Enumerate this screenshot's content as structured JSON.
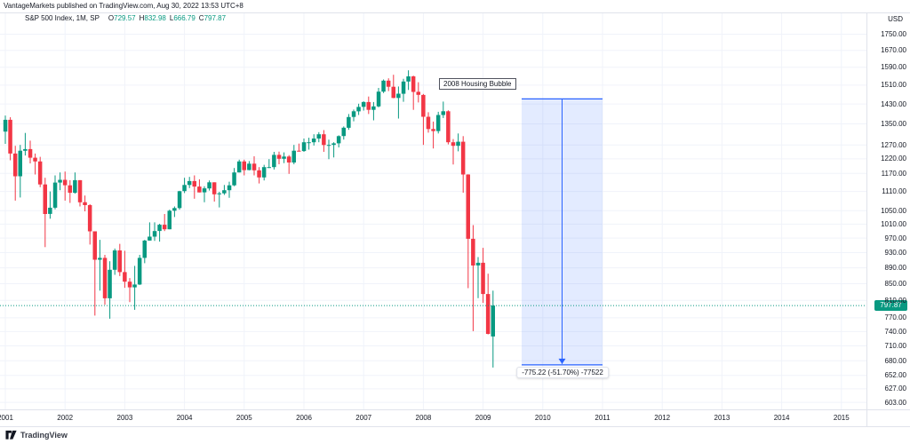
{
  "header": {
    "publisher_line": "VantageMarkets published on TradingView.com, Aug 30, 2022 13:53 UTC+8"
  },
  "legend": {
    "symbol": "S&P 500 Index, 1M, SP",
    "ohlc": [
      {
        "label": "O",
        "value": "729.57"
      },
      {
        "label": "H",
        "value": "832.98"
      },
      {
        "label": "L",
        "value": "666.79"
      },
      {
        "label": "C",
        "value": "797.87"
      }
    ]
  },
  "annotation": {
    "text": "2008 Housing Bubble"
  },
  "measure_tool": {
    "label": "-775.22 (-51.70%) -77522"
  },
  "price_axis": {
    "currency": "USD",
    "last_price": "797.87",
    "ticks": [
      "1750.00",
      "1670.00",
      "1590.00",
      "1510.00",
      "1430.00",
      "1350.00",
      "1270.00",
      "1220.00",
      "1170.00",
      "1110.00",
      "1050.00",
      "1010.00",
      "970.00",
      "930.00",
      "890.00",
      "850.00",
      "810.00",
      "770.00",
      "740.00",
      "710.00",
      "680.00",
      "652.00",
      "627.00",
      "603.00"
    ]
  },
  "time_axis": {
    "years": [
      "2001",
      "2002",
      "2003",
      "2004",
      "2005",
      "2006",
      "2007",
      "2008",
      "2009",
      "2010",
      "2011",
      "2012",
      "2013",
      "2014",
      "2015"
    ]
  },
  "watermark": {
    "text": "TradingView"
  },
  "colors": {
    "up": "#089981",
    "down": "#f23645",
    "grid": "#f0f3fa",
    "frame": "#e0e3eb",
    "measure_line": "#2962ff",
    "measure_fill": "rgba(41,98,255,0.13)",
    "text": "#131722"
  },
  "chart_data": {
    "type": "candlestick",
    "title": "S&P 500 Index",
    "timeframe": "1M",
    "exchange": "SP",
    "price_scale": "log",
    "ylabel": "USD",
    "x_range": [
      "2001",
      "2015"
    ],
    "last_bar": {
      "o": 729.57,
      "h": 832.98,
      "l": 666.79,
      "c": 797.87
    },
    "candles": [
      [
        "2001-01",
        1320,
        1383,
        1274,
        1366
      ],
      [
        "2001-02",
        1366,
        1376,
        1215,
        1239
      ],
      [
        "2001-03",
        1239,
        1267,
        1081,
        1160
      ],
      [
        "2001-04",
        1160,
        1270,
        1091,
        1249
      ],
      [
        "2001-05",
        1249,
        1315,
        1232,
        1255
      ],
      [
        "2001-06",
        1255,
        1286,
        1204,
        1224
      ],
      [
        "2001-07",
        1224,
        1239,
        1166,
        1211
      ],
      [
        "2001-08",
        1211,
        1227,
        1124,
        1133
      ],
      [
        "2001-09",
        1133,
        1155,
        945,
        1040
      ],
      [
        "2001-10",
        1040,
        1110,
        1026,
        1059
      ],
      [
        "2001-11",
        1059,
        1163,
        1054,
        1139
      ],
      [
        "2001-12",
        1139,
        1173,
        1114,
        1148
      ],
      [
        "2002-01",
        1148,
        1176,
        1081,
        1130
      ],
      [
        "2002-02",
        1130,
        1147,
        1074,
        1106
      ],
      [
        "2002-03",
        1106,
        1173,
        1103,
        1147
      ],
      [
        "2002-04",
        1147,
        1147,
        1063,
        1076
      ],
      [
        "2002-05",
        1076,
        1097,
        1048,
        1067
      ],
      [
        "2002-06",
        1067,
        1070,
        952,
        989
      ],
      [
        "2002-07",
        989,
        989,
        775,
        911
      ],
      [
        "2002-08",
        911,
        965,
        833,
        916
      ],
      [
        "2002-09",
        916,
        924,
        800,
        815
      ],
      [
        "2002-10",
        815,
        907,
        768,
        885
      ],
      [
        "2002-11",
        885,
        941,
        872,
        936
      ],
      [
        "2002-12",
        936,
        954,
        869,
        879
      ],
      [
        "2003-01",
        879,
        935,
        840,
        855
      ],
      [
        "2003-02",
        855,
        864,
        806,
        841
      ],
      [
        "2003-03",
        841,
        895,
        788,
        848
      ],
      [
        "2003-04",
        848,
        924,
        847,
        916
      ],
      [
        "2003-05",
        916,
        965,
        902,
        963
      ],
      [
        "2003-06",
        963,
        1015,
        963,
        974
      ],
      [
        "2003-07",
        974,
        1015,
        962,
        990
      ],
      [
        "2003-08",
        990,
        1011,
        960,
        1008
      ],
      [
        "2003-09",
        1008,
        1040,
        990,
        995
      ],
      [
        "2003-10",
        995,
        1053,
        995,
        1050
      ],
      [
        "2003-11",
        1050,
        1063,
        1031,
        1058
      ],
      [
        "2003-12",
        1058,
        1112,
        1053,
        1111
      ],
      [
        "2004-01",
        1111,
        1155,
        1105,
        1131
      ],
      [
        "2004-02",
        1131,
        1158,
        1121,
        1144
      ],
      [
        "2004-03",
        1144,
        1163,
        1087,
        1126
      ],
      [
        "2004-04",
        1126,
        1150,
        1107,
        1107
      ],
      [
        "2004-05",
        1107,
        1127,
        1076,
        1120
      ],
      [
        "2004-06",
        1120,
        1146,
        1113,
        1140
      ],
      [
        "2004-07",
        1140,
        1140,
        1078,
        1101
      ],
      [
        "2004-08",
        1101,
        1109,
        1060,
        1104
      ],
      [
        "2004-09",
        1104,
        1131,
        1099,
        1114
      ],
      [
        "2004-10",
        1114,
        1142,
        1090,
        1130
      ],
      [
        "2004-11",
        1130,
        1188,
        1127,
        1173
      ],
      [
        "2004-12",
        1173,
        1217,
        1173,
        1211
      ],
      [
        "2005-01",
        1211,
        1217,
        1163,
        1181
      ],
      [
        "2005-02",
        1181,
        1212,
        1180,
        1203
      ],
      [
        "2005-03",
        1203,
        1229,
        1163,
        1180
      ],
      [
        "2005-04",
        1180,
        1191,
        1136,
        1156
      ],
      [
        "2005-05",
        1156,
        1199,
        1146,
        1191
      ],
      [
        "2005-06",
        1191,
        1219,
        1188,
        1191
      ],
      [
        "2005-07",
        1191,
        1245,
        1183,
        1234
      ],
      [
        "2005-08",
        1234,
        1246,
        1201,
        1220
      ],
      [
        "2005-09",
        1220,
        1243,
        1205,
        1228
      ],
      [
        "2005-10",
        1228,
        1233,
        1168,
        1207
      ],
      [
        "2005-11",
        1207,
        1270,
        1201,
        1249
      ],
      [
        "2005-12",
        1249,
        1275,
        1246,
        1248
      ],
      [
        "2006-01",
        1248,
        1294,
        1245,
        1280
      ],
      [
        "2006-02",
        1280,
        1297,
        1253,
        1280
      ],
      [
        "2006-03",
        1280,
        1310,
        1268,
        1294
      ],
      [
        "2006-04",
        1294,
        1318,
        1280,
        1310
      ],
      [
        "2006-05",
        1310,
        1326,
        1245,
        1270
      ],
      [
        "2006-06",
        1270,
        1290,
        1219,
        1270
      ],
      [
        "2006-07",
        1270,
        1280,
        1225,
        1276
      ],
      [
        "2006-08",
        1276,
        1306,
        1261,
        1303
      ],
      [
        "2006-09",
        1303,
        1340,
        1290,
        1335
      ],
      [
        "2006-10",
        1335,
        1389,
        1327,
        1377
      ],
      [
        "2006-11",
        1377,
        1407,
        1360,
        1400
      ],
      [
        "2006-12",
        1400,
        1431,
        1385,
        1418
      ],
      [
        "2007-01",
        1418,
        1441,
        1403,
        1438
      ],
      [
        "2007-02",
        1438,
        1461,
        1389,
        1406
      ],
      [
        "2007-03",
        1406,
        1438,
        1364,
        1420
      ],
      [
        "2007-04",
        1420,
        1498,
        1416,
        1482
      ],
      [
        "2007-05",
        1482,
        1535,
        1476,
        1530
      ],
      [
        "2007-06",
        1530,
        1540,
        1484,
        1503
      ],
      [
        "2007-07",
        1503,
        1556,
        1454,
        1455
      ],
      [
        "2007-08",
        1455,
        1504,
        1371,
        1473
      ],
      [
        "2007-09",
        1473,
        1538,
        1439,
        1526
      ],
      [
        "2007-10",
        1526,
        1576,
        1489,
        1549
      ],
      [
        "2007-11",
        1549,
        1552,
        1406,
        1481
      ],
      [
        "2007-12",
        1481,
        1523,
        1436,
        1468
      ],
      [
        "2008-01",
        1468,
        1472,
        1270,
        1378
      ],
      [
        "2008-02",
        1378,
        1396,
        1316,
        1330
      ],
      [
        "2008-03",
        1330,
        1359,
        1257,
        1322
      ],
      [
        "2008-04",
        1322,
        1398,
        1313,
        1385
      ],
      [
        "2008-05",
        1385,
        1440,
        1373,
        1400
      ],
      [
        "2008-06",
        1400,
        1404,
        1272,
        1280
      ],
      [
        "2008-07",
        1280,
        1292,
        1200,
        1267
      ],
      [
        "2008-08",
        1267,
        1313,
        1247,
        1282
      ],
      [
        "2008-09",
        1282,
        1303,
        1106,
        1166
      ],
      [
        "2008-10",
        1166,
        1167,
        839,
        968
      ],
      [
        "2008-11",
        968,
        1007,
        741,
        896
      ],
      [
        "2008-12",
        896,
        918,
        815,
        903
      ],
      [
        "2009-01",
        903,
        943,
        804,
        825
      ],
      [
        "2009-02",
        825,
        875,
        734,
        735
      ],
      [
        "2009-03",
        729.57,
        832.98,
        666.79,
        797.87
      ]
    ]
  }
}
